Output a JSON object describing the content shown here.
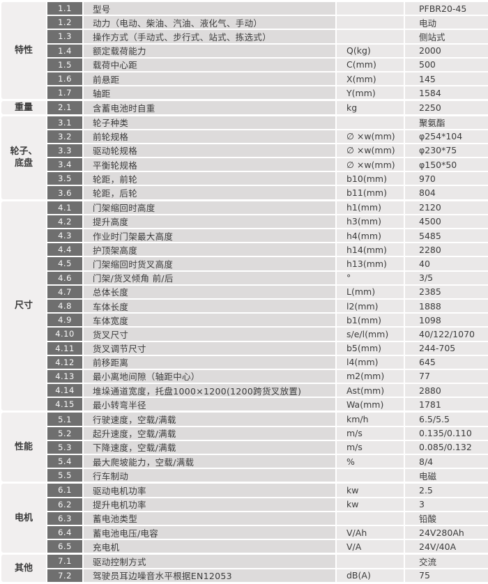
{
  "colors": {
    "badge_bg": "#6f6f6f",
    "badge_text": "#fafafa",
    "desc_row_bg": "#dddbdb",
    "unit_value_bg": "#eae8e8",
    "category_bg": "#f1efef",
    "text": "#3b3b3b"
  },
  "table": {
    "sections": [
      {
        "category": "特性",
        "rows": [
          {
            "no": "1.1",
            "label": "型号",
            "unit": "",
            "value": "PFBR20-45"
          },
          {
            "no": "1.2",
            "label": "动力（电动、柴油、汽油、液化气、手动）",
            "unit": "",
            "value": "电动"
          },
          {
            "no": "1.3",
            "label": "操作方式（手动式、步行式、站式、拣选式）",
            "unit": "",
            "value": "侧站式"
          },
          {
            "no": "1.4",
            "label": "额定载荷能力",
            "unit": "Q(kg)",
            "value": "2000"
          },
          {
            "no": "1.5",
            "label": "载荷中心距",
            "unit": "C(mm)",
            "value": "500"
          },
          {
            "no": "1.6",
            "label": "前悬距",
            "unit": "X(mm)",
            "value": "145"
          },
          {
            "no": "1.7",
            "label": "轴距",
            "unit": "Y(mm)",
            "value": "1584"
          }
        ]
      },
      {
        "category": "重量",
        "rows": [
          {
            "no": "2.1",
            "label": "含蓄电池时自重",
            "unit": "kg",
            "value": "2250"
          }
        ]
      },
      {
        "category": "轮子、\n底盘",
        "rows": [
          {
            "no": "3.1",
            "label": "轮子种类",
            "unit": "",
            "value": "聚氨酯"
          },
          {
            "no": "3.2",
            "label": "前轮规格",
            "unit": "∅ ×w(mm)",
            "value": "φ254*104"
          },
          {
            "no": "3.3",
            "label": "驱动轮规格",
            "unit": "∅ ×w(mm)",
            "value": "φ230*75"
          },
          {
            "no": "3.4",
            "label": "平衡轮规格",
            "unit": "∅ ×w(mm)",
            "value": "φ150*50"
          },
          {
            "no": "3.5",
            "label": "轮距，前轮",
            "unit": "b10(mm)",
            "value": "970"
          },
          {
            "no": "3.6",
            "label": "轮距，后轮",
            "unit": "b11(mm)",
            "value": "804"
          }
        ]
      },
      {
        "category": "尺寸",
        "rows": [
          {
            "no": "4.1",
            "label": "门架缩回时高度",
            "unit": "h1(mm)",
            "value": "2120"
          },
          {
            "no": "4.2",
            "label": "提升高度",
            "unit": "h3(mm)",
            "value": "4500"
          },
          {
            "no": "4.3",
            "label": "作业时门架最大高度",
            "unit": "h4(mm)",
            "value": "5485"
          },
          {
            "no": "4.4",
            "label": "护顶架高度",
            "unit": "h14(mm)",
            "value": "2280"
          },
          {
            "no": "4.5",
            "label": "门架缩回时货叉高度",
            "unit": "h13(mm)",
            "value": "40"
          },
          {
            "no": "4.6",
            "label": "门架/货叉倾角 前/后",
            "unit": "°",
            "value": "3/5"
          },
          {
            "no": "4.7",
            "label": "总体长度",
            "unit": "L(mm)",
            "value": "2385"
          },
          {
            "no": "4.8",
            "label": "车体长度",
            "unit": "l2(mm)",
            "value": "1888"
          },
          {
            "no": "4.9",
            "label": "车体宽度",
            "unit": "b1(mm)",
            "value": "1098"
          },
          {
            "no": "4.10",
            "label": "货叉尺寸",
            "unit": "s/e/l(mm)",
            "value": "40/122/1070"
          },
          {
            "no": "4.11",
            "label": "货叉调节尺寸",
            "unit": "b5(mm)",
            "value": "244-705"
          },
          {
            "no": "4.12",
            "label": "前移距离",
            "unit": "l4(mm)",
            "value": "645"
          },
          {
            "no": "4.13",
            "label": "最小离地间隙（轴距中心）",
            "unit": "m2(mm)",
            "value": "77"
          },
          {
            "no": "4.14",
            "label": "堆垛通道宽度，托盘1000×1200(1200跨货叉放置)",
            "unit": "Ast(mm)",
            "value": "2880"
          },
          {
            "no": "4.15",
            "label": "最小转弯半径",
            "unit": "Wa(mm)",
            "value": "1781"
          }
        ]
      },
      {
        "category": "性能",
        "rows": [
          {
            "no": "5.1",
            "label": "行驶速度，空载/满载",
            "unit": "km/h",
            "value": "6.5/5.5"
          },
          {
            "no": "5.2",
            "label": "起升速度，空载/满载",
            "unit": "m/s",
            "value": "0.135/0.110"
          },
          {
            "no": "5.3",
            "label": "下降速度，空载/满载",
            "unit": "m/s",
            "value": "0.085/0.132"
          },
          {
            "no": "5.4",
            "label": "最大爬坡能力，空载/满载",
            "unit": "%",
            "value": "8/4"
          },
          {
            "no": "5.5",
            "label": "行车制动",
            "unit": "",
            "value": "电磁"
          }
        ]
      },
      {
        "category": "电机",
        "rows": [
          {
            "no": "6.1",
            "label": "驱动电机功率",
            "unit": "kw",
            "value": "2.5"
          },
          {
            "no": "6.2",
            "label": "提升电机功率",
            "unit": "kw",
            "value": "3"
          },
          {
            "no": "6.3",
            "label": "蓄电池类型",
            "unit": "",
            "value": "铅酸"
          },
          {
            "no": "6.4",
            "label": "蓄电池电压/电容",
            "unit": "V/Ah",
            "value": "24V280Ah"
          },
          {
            "no": "6.5",
            "label": "充电机",
            "unit": "V/A",
            "value": "24V/40A"
          }
        ]
      },
      {
        "category": "其他",
        "rows": [
          {
            "no": "7.1",
            "label": "驱动控制方式",
            "unit": "",
            "value": "交流"
          },
          {
            "no": "7.2",
            "label": "驾驶员耳边噪音水平根据EN12053",
            "unit": "dB(A)",
            "value": "75"
          }
        ]
      }
    ]
  }
}
